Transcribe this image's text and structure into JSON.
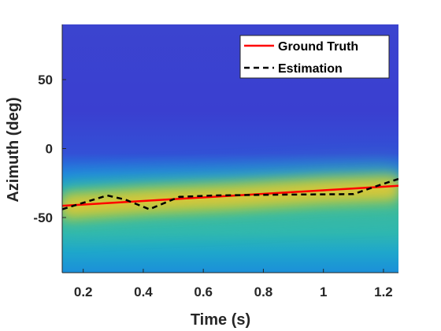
{
  "chart_data": {
    "type": "heatmap",
    "title": "",
    "xlabel": "Time (s)",
    "ylabel": "Azimuth (deg)",
    "xlim": [
      0.13,
      1.25
    ],
    "ylim": [
      -90,
      90
    ],
    "x_ticks": [
      0.2,
      0.4,
      0.6,
      0.8,
      1.0,
      1.2
    ],
    "x_tick_labels": [
      "0.2",
      "0.4",
      "0.6",
      "0.8",
      "1",
      "1.2"
    ],
    "y_ticks": [
      -50,
      0,
      50
    ],
    "y_tick_labels": [
      "-50",
      "0",
      "50"
    ],
    "colormap": "parula",
    "colors": {
      "ground_truth": "#ff0000",
      "estimation": "#000000"
    },
    "legend": {
      "location": "top-right"
    },
    "series": [
      {
        "name": "Ground Truth",
        "style": "solid",
        "x": [
          0.13,
          1.25
        ],
        "y": [
          -41.5,
          -27
        ]
      },
      {
        "name": "Estimation",
        "style": "dashed",
        "x": [
          0.13,
          0.28,
          0.34,
          0.42,
          0.52,
          0.64,
          0.82,
          1.1,
          1.18,
          1.25
        ],
        "y": [
          -44,
          -34,
          -37,
          -44,
          -35,
          -34,
          -33.5,
          -33,
          -27,
          -22
        ]
      }
    ],
    "heatmap_ridge": {
      "x": [
        0.13,
        0.4,
        0.7,
        1.0,
        1.25
      ],
      "y": [
        -42,
        -38,
        -35,
        -31,
        -29
      ],
      "half_width_deg": 8
    }
  }
}
